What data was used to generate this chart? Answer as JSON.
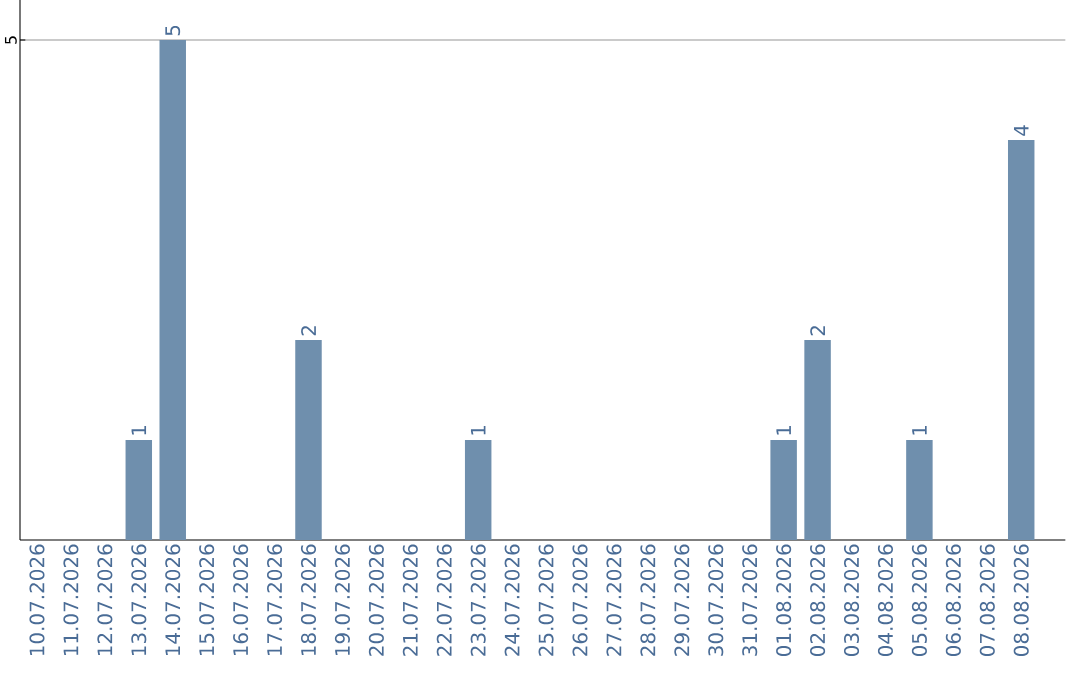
{
  "chart_data": {
    "type": "bar",
    "categories": [
      "10.07.2026",
      "11.07.2026",
      "12.07.2026",
      "13.07.2026",
      "14.07.2026",
      "15.07.2026",
      "16.07.2026",
      "17.07.2026",
      "18.07.2026",
      "19.07.2026",
      "20.07.2026",
      "21.07.2026",
      "22.07.2026",
      "23.07.2026",
      "24.07.2026",
      "25.07.2026",
      "26.07.2026",
      "27.07.2026",
      "28.07.2026",
      "29.07.2026",
      "30.07.2026",
      "31.07.2026",
      "01.08.2026",
      "02.08.2026",
      "03.08.2026",
      "04.08.2026",
      "05.08.2026",
      "06.08.2026",
      "07.08.2026",
      "08.08.2026"
    ],
    "values": [
      0,
      0,
      0,
      1,
      5,
      0,
      0,
      0,
      2,
      0,
      0,
      0,
      0,
      1,
      0,
      0,
      0,
      0,
      0,
      0,
      0,
      0,
      1,
      2,
      0,
      0,
      1,
      0,
      0,
      4
    ],
    "value_labels": [
      null,
      null,
      null,
      "1",
      "5",
      null,
      null,
      null,
      "2",
      null,
      null,
      null,
      null,
      "1",
      null,
      null,
      null,
      null,
      null,
      null,
      null,
      null,
      "1",
      "2",
      null,
      null,
      "1",
      null,
      null,
      "4"
    ],
    "color": "#6f8fad",
    "ylim": [
      0,
      5.4
    ],
    "yticks": [
      5
    ],
    "grid": "y"
  }
}
